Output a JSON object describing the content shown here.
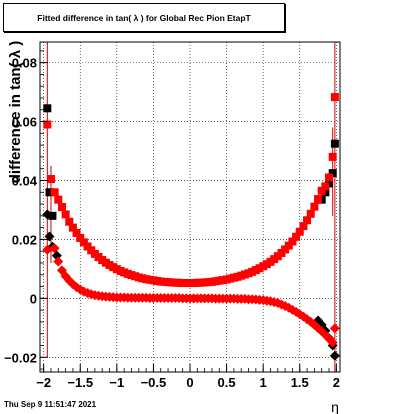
{
  "title": "Fitted difference in tan( λ ) for Global Rec Pion EtapT",
  "timestamp": "Thu Sep  9 11:51:47 2021",
  "chart_data": {
    "type": "scatter",
    "title": "Fitted difference in tan( λ ) for Global Rec Pion EtapT",
    "xlabel": "η",
    "ylabel": "difference in tan( λ )",
    "xlim": [
      -2.05,
      2.05
    ],
    "ylim": [
      -0.025,
      0.087
    ],
    "xticks": [
      -2,
      -1.5,
      -1,
      -0.5,
      0,
      0.5,
      1,
      1.5,
      2
    ],
    "xtick_labels": [
      "−2",
      "−1.5",
      "−1",
      "−0.5",
      "0",
      "0.5",
      "1",
      "1.5",
      "2"
    ],
    "yticks": [
      -0.02,
      0,
      0.02,
      0.04,
      0.06,
      0.08
    ],
    "ytick_labels": [
      "−0.02",
      "0",
      "0.02",
      "0.04",
      "0.06",
      "0.08"
    ],
    "grid": true,
    "colors": {
      "red": "#ff0000",
      "black": "#000000",
      "err": "#cc0000"
    },
    "series": [
      {
        "marker": "square",
        "color": "#000000",
        "points": [
          [
            -1.95,
            0.0645
          ],
          [
            -1.92,
            0.036
          ],
          [
            -1.88,
            0.028
          ],
          [
            1.8,
            0.0335
          ],
          [
            1.85,
            0.036
          ],
          [
            1.9,
            0.039
          ],
          [
            1.95,
            0.0425
          ],
          [
            1.98,
            0.0525
          ]
        ]
      },
      {
        "marker": "square",
        "color": "#ff0000",
        "points": [
          [
            -1.95,
            0.059
          ],
          [
            -1.9,
            0.0405
          ],
          [
            -1.85,
            0.036
          ],
          [
            -1.8,
            0.0335
          ],
          [
            -1.75,
            0.031
          ],
          [
            -1.7,
            0.0285
          ],
          [
            -1.65,
            0.026
          ],
          [
            -1.6,
            0.024
          ],
          [
            -1.55,
            0.0222
          ],
          [
            -1.5,
            0.0205
          ],
          [
            -1.45,
            0.019
          ],
          [
            -1.4,
            0.0176
          ],
          [
            -1.35,
            0.0163
          ],
          [
            -1.3,
            0.0151
          ],
          [
            -1.25,
            0.014
          ],
          [
            -1.2,
            0.013
          ],
          [
            -1.15,
            0.0121
          ],
          [
            -1.1,
            0.0113
          ],
          [
            -1.05,
            0.0106
          ],
          [
            -1.0,
            0.0099
          ],
          [
            -0.95,
            0.0093
          ],
          [
            -0.9,
            0.0088
          ],
          [
            -0.85,
            0.0083
          ],
          [
            -0.8,
            0.0079
          ],
          [
            -0.75,
            0.0075
          ],
          [
            -0.7,
            0.0071
          ],
          [
            -0.65,
            0.0068
          ],
          [
            -0.6,
            0.0065
          ],
          [
            -0.55,
            0.0063
          ],
          [
            -0.5,
            0.0061
          ],
          [
            -0.45,
            0.0059
          ],
          [
            -0.4,
            0.0057
          ],
          [
            -0.35,
            0.0056
          ],
          [
            -0.3,
            0.0055
          ],
          [
            -0.25,
            0.0054
          ],
          [
            -0.2,
            0.0053
          ],
          [
            -0.15,
            0.0053
          ],
          [
            -0.1,
            0.0052
          ],
          [
            -0.05,
            0.0052
          ],
          [
            0.0,
            0.0052
          ],
          [
            0.05,
            0.0052
          ],
          [
            0.1,
            0.0053
          ],
          [
            0.15,
            0.0053
          ],
          [
            0.2,
            0.0054
          ],
          [
            0.25,
            0.0055
          ],
          [
            0.3,
            0.0056
          ],
          [
            0.35,
            0.0058
          ],
          [
            0.4,
            0.006
          ],
          [
            0.45,
            0.0062
          ],
          [
            0.5,
            0.0064
          ],
          [
            0.55,
            0.0067
          ],
          [
            0.6,
            0.007
          ],
          [
            0.65,
            0.0073
          ],
          [
            0.7,
            0.0077
          ],
          [
            0.75,
            0.0081
          ],
          [
            0.8,
            0.0085
          ],
          [
            0.85,
            0.009
          ],
          [
            0.9,
            0.0096
          ],
          [
            0.95,
            0.0102
          ],
          [
            1.0,
            0.0109
          ],
          [
            1.05,
            0.0116
          ],
          [
            1.1,
            0.0124
          ],
          [
            1.15,
            0.0133
          ],
          [
            1.2,
            0.0143
          ],
          [
            1.25,
            0.0154
          ],
          [
            1.3,
            0.0166
          ],
          [
            1.35,
            0.0179
          ],
          [
            1.4,
            0.0193
          ],
          [
            1.45,
            0.0209
          ],
          [
            1.5,
            0.0226
          ],
          [
            1.55,
            0.0245
          ],
          [
            1.6,
            0.0265
          ],
          [
            1.65,
            0.0287
          ],
          [
            1.7,
            0.0311
          ],
          [
            1.75,
            0.0337
          ],
          [
            1.8,
            0.0365
          ],
          [
            1.85,
            0.038
          ],
          [
            1.9,
            0.041
          ],
          [
            1.95,
            0.048
          ],
          [
            1.98,
            0.0683
          ]
        ]
      },
      {
        "marker": "diamond",
        "color": "#000000",
        "points": [
          [
            -1.95,
            0.0285
          ],
          [
            -1.92,
            0.021
          ],
          [
            -1.88,
            0.0175
          ],
          [
            -1.82,
            0.0145
          ],
          [
            1.75,
            -0.0075
          ],
          [
            1.8,
            -0.009
          ],
          [
            1.85,
            -0.011
          ],
          [
            1.9,
            -0.0135
          ],
          [
            1.95,
            -0.016
          ],
          [
            1.98,
            -0.0195
          ]
        ]
      },
      {
        "marker": "diamond",
        "color": "#ff0000",
        "points": [
          [
            -1.95,
            0.0165
          ],
          [
            -1.85,
            0.017
          ],
          [
            -1.8,
            0.0125
          ],
          [
            -1.75,
            0.0095
          ],
          [
            -1.7,
            0.0075
          ],
          [
            -1.65,
            0.006
          ],
          [
            -1.6,
            0.0048
          ],
          [
            -1.55,
            0.0038
          ],
          [
            -1.5,
            0.003
          ],
          [
            -1.45,
            0.0023
          ],
          [
            -1.4,
            0.0018
          ],
          [
            -1.35,
            0.0014
          ],
          [
            -1.3,
            0.0011
          ],
          [
            -1.25,
            0.0009
          ],
          [
            -1.2,
            0.0007
          ],
          [
            -1.15,
            0.0006
          ],
          [
            -1.1,
            0.0005
          ],
          [
            -1.05,
            0.0004
          ],
          [
            -1.0,
            0.0003
          ],
          [
            -0.95,
            0.0003
          ],
          [
            -0.9,
            0.0003
          ],
          [
            -0.85,
            0.0002
          ],
          [
            -0.8,
            0.0002
          ],
          [
            -0.75,
            0.0002
          ],
          [
            -0.7,
            0.0002
          ],
          [
            -0.65,
            0.0002
          ],
          [
            -0.6,
            0.0002
          ],
          [
            -0.55,
            0.0001
          ],
          [
            -0.5,
            0.0001
          ],
          [
            -0.45,
            0.0001
          ],
          [
            -0.4,
            0.0001
          ],
          [
            -0.35,
            0.0001
          ],
          [
            -0.3,
            0.0001
          ],
          [
            -0.25,
            0.0001
          ],
          [
            -0.2,
            0.0001
          ],
          [
            -0.15,
            0.0001
          ],
          [
            -0.1,
            0.0
          ],
          [
            -0.05,
            0.0
          ],
          [
            0.0,
            0.0
          ],
          [
            0.05,
            0.0
          ],
          [
            0.1,
            0.0
          ],
          [
            0.15,
            0.0
          ],
          [
            0.2,
            0.0
          ],
          [
            0.25,
            0.0
          ],
          [
            0.3,
            0.0
          ],
          [
            0.35,
            -0.0001
          ],
          [
            0.4,
            -0.0001
          ],
          [
            0.45,
            -0.0001
          ],
          [
            0.5,
            -0.0001
          ],
          [
            0.55,
            -0.0001
          ],
          [
            0.6,
            -0.0001
          ],
          [
            0.65,
            -0.0002
          ],
          [
            0.7,
            -0.0002
          ],
          [
            0.75,
            -0.0002
          ],
          [
            0.8,
            -0.0003
          ],
          [
            0.85,
            -0.0003
          ],
          [
            0.9,
            -0.0004
          ],
          [
            0.95,
            -0.0005
          ],
          [
            1.0,
            -0.0006
          ],
          [
            1.05,
            -0.0008
          ],
          [
            1.1,
            -0.001
          ],
          [
            1.15,
            -0.0013
          ],
          [
            1.2,
            -0.0016
          ],
          [
            1.25,
            -0.0021
          ],
          [
            1.3,
            -0.0026
          ],
          [
            1.35,
            -0.0032
          ],
          [
            1.4,
            -0.0039
          ],
          [
            1.45,
            -0.0046
          ],
          [
            1.5,
            -0.0054
          ],
          [
            1.55,
            -0.0062
          ],
          [
            1.6,
            -0.0071
          ],
          [
            1.65,
            -0.008
          ],
          [
            1.7,
            -0.009
          ],
          [
            1.75,
            -0.0101
          ],
          [
            1.8,
            -0.0112
          ],
          [
            1.85,
            -0.0124
          ],
          [
            1.9,
            -0.0137
          ],
          [
            1.95,
            -0.015
          ],
          [
            1.98,
            -0.0102
          ]
        ]
      }
    ],
    "error_bars": [
      {
        "x": -1.95,
        "ylo": -0.02,
        "yhi": 0.087
      },
      {
        "x": -1.9,
        "ylo": 0.012,
        "yhi": 0.045
      },
      {
        "x": 1.95,
        "ylo": 0.028,
        "yhi": 0.058
      },
      {
        "x": 1.98,
        "ylo": -0.025,
        "yhi": 0.087
      }
    ]
  }
}
